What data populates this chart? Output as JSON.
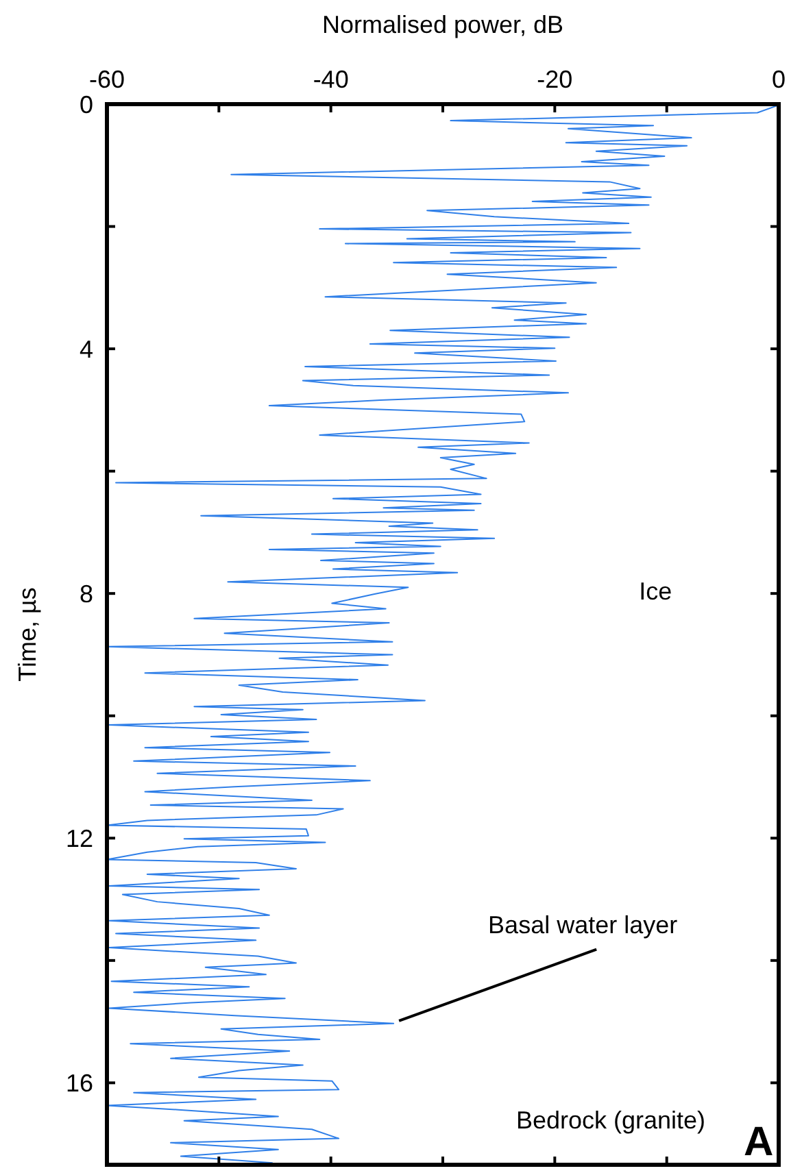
{
  "chart_data": {
    "type": "line",
    "orientation": "horizontal",
    "xlabel": "Normalised power, dB",
    "ylabel": "Time, µs",
    "xlim": [
      -60,
      0
    ],
    "xticks": [
      -60,
      {
        "value": -50,
        "label": null
      },
      -40,
      {
        "value": -30,
        "label": null
      },
      -20,
      {
        "value": -10,
        "label": null
      },
      0
    ],
    "ylim": [
      17.34,
      0
    ],
    "yticks": [
      0,
      {
        "value": 2,
        "label": null
      },
      4,
      {
        "value": 6,
        "label": null
      },
      8,
      {
        "value": 10,
        "label": null
      },
      12,
      {
        "value": 14,
        "label": null
      },
      16
    ],
    "grid": false,
    "marker": "none",
    "line_style": "solid",
    "annotations": [
      "Ice",
      {
        "text": "Basal water layer",
        "x": -34.4,
        "y": 15.03
      },
      "Bedrock (granite)",
      "A"
    ],
    "series": [
      {
        "color": "#2f7fe8",
        "x": [
          0.015,
          0.14,
          0.27,
          0.35,
          0.4,
          0.55,
          0.63,
          0.68,
          0.77,
          0.85,
          0.94,
          1.0,
          1.15,
          1.27,
          1.38,
          1.45,
          1.52,
          1.59,
          1.65,
          1.74,
          1.84,
          1.95,
          2.04,
          2.1,
          2.2,
          2.25,
          2.28,
          2.36,
          2.43,
          2.51,
          2.59,
          2.67,
          2.78,
          2.92,
          3.15,
          3.25,
          3.33,
          3.44,
          3.53,
          3.59,
          3.7,
          3.81,
          3.92,
          3.99,
          4.07,
          4.2,
          4.29,
          4.43,
          4.52,
          4.6,
          4.72,
          4.84,
          4.93,
          5.07,
          5.19,
          5.41,
          5.54,
          5.61,
          5.71,
          5.78,
          5.89,
          5.97,
          6.12,
          6.19,
          6.26,
          6.38,
          6.45,
          6.53,
          6.6,
          6.64,
          6.73,
          6.79,
          6.85,
          6.9,
          6.96,
          7.03,
          7.1,
          7.17,
          7.23,
          7.28,
          7.34,
          7.46,
          7.51,
          7.6,
          7.66,
          7.81,
          7.9,
          8.01,
          8.16,
          8.25,
          8.41,
          8.48,
          8.65,
          8.79,
          8.87,
          9.0,
          9.06,
          9.17,
          9.3,
          9.41,
          9.5,
          9.61,
          9.75,
          9.85,
          9.9,
          9.98,
          10.06,
          10.15,
          10.27,
          10.34,
          10.42,
          10.52,
          10.6,
          10.74,
          10.82,
          10.94,
          11.06,
          11.16,
          11.24,
          11.38,
          11.46,
          11.52,
          11.62,
          11.71,
          11.79,
          11.85,
          11.96,
          12.01,
          12.07,
          12.14,
          12.23,
          12.35,
          12.4,
          12.5,
          12.59,
          12.66,
          12.78,
          12.84,
          12.92,
          13.04,
          13.15,
          13.26,
          13.35,
          13.47,
          13.56,
          13.67,
          13.79,
          13.93,
          14.04,
          14.11,
          14.23,
          14.34,
          14.43,
          14.52,
          14.62,
          14.69,
          14.78,
          14.9,
          15.03,
          15.12,
          15.21,
          15.29,
          15.36,
          15.48,
          15.6,
          15.71,
          15.8,
          15.91,
          15.97,
          16.11,
          16.16,
          16.27,
          16.37,
          16.44,
          16.55,
          16.62,
          16.76,
          16.91,
          16.98,
          17.09,
          17.2,
          17.31
        ],
        "values": [
          0,
          -1.9,
          -29.3,
          -11.2,
          -18.8,
          -7.8,
          -19,
          -8.2,
          -16.3,
          -10.2,
          -17.6,
          -11.6,
          -48.9,
          -15.1,
          -12.4,
          -17.5,
          -11.4,
          -22,
          -11.6,
          -31.4,
          -25.4,
          -13.4,
          -41,
          -13.2,
          -33.2,
          -18.2,
          -38.7,
          -12.4,
          -29.3,
          -15.4,
          -34.4,
          -14.5,
          -29.6,
          -16.3,
          -40.5,
          -19,
          -25.6,
          -17.2,
          -23.6,
          -17.2,
          -34.7,
          -18.7,
          -36.5,
          -20,
          -32.5,
          -19.9,
          -42.3,
          -20.5,
          -42.5,
          -38,
          -18.8,
          -35.6,
          -45.5,
          -23,
          -22.7,
          -41,
          -22.3,
          -32.2,
          -23.5,
          -30.2,
          -27.2,
          -29.3,
          -26.1,
          -59.2,
          -30.2,
          -26.6,
          -39.8,
          -26.6,
          -35.3,
          -27.2,
          -51.6,
          -40.7,
          -30.9,
          -34.8,
          -26.9,
          -41.7,
          -25.4,
          -37.8,
          -30.2,
          -45.5,
          -30.8,
          -40.9,
          -30.8,
          -39.8,
          -28.7,
          -49.2,
          -33.1,
          -36.1,
          -39.9,
          -35.1,
          -52.2,
          -34.8,
          -49.5,
          -34.5,
          -60,
          -34.5,
          -44.6,
          -34.9,
          -56.6,
          -37.6,
          -48.2,
          -44.3,
          -31.6,
          -52.2,
          -42.5,
          -49.8,
          -41.3,
          -59.8,
          -42,
          -50.7,
          -42,
          -56.6,
          -40.1,
          -57.6,
          -37.8,
          -55.5,
          -36.5,
          -48.6,
          -56.6,
          -41.7,
          -56.1,
          -38.9,
          -41.3,
          -56.4,
          -60,
          -42.2,
          -42,
          -53.1,
          -40.5,
          -51.9,
          -56.4,
          -60,
          -46.7,
          -43.1,
          -56.4,
          -48.2,
          -59.8,
          -46.4,
          -58.6,
          -55.5,
          -48.2,
          -45.5,
          -59.8,
          -46.4,
          -59.2,
          -46.7,
          -59.8,
          -46.5,
          -43.1,
          -51.2,
          -45.8,
          -59.6,
          -47.3,
          -57.6,
          -44.1,
          -52.5,
          -59.8,
          -48.6,
          -34.4,
          -49.8,
          -46.5,
          -41,
          -57.9,
          -43.7,
          -54.3,
          -42.5,
          -48.2,
          -51.8,
          -39.9,
          -39.3,
          -57.6,
          -46.7,
          -60,
          -53.6,
          -44.7,
          -53.1,
          -41.7,
          -39.3,
          -54.3,
          -44.7,
          -53.4,
          -45.2
        ]
      }
    ]
  }
}
